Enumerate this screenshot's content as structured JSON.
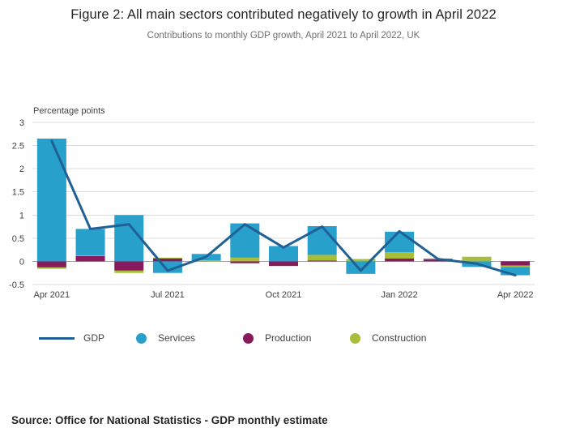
{
  "header": {
    "title": "Figure 2: All main sectors contributed negatively to growth in April 2022",
    "subtitle": "Contributions to monthly GDP growth, April 2021 to April 2022, UK"
  },
  "chart_data": {
    "type": "bar",
    "subtype": "stacked-bars-with-line-overlay",
    "unit_label": "Percentage points",
    "categories": [
      "Apr 2021",
      "May 2021",
      "Jun 2021",
      "Jul 2021",
      "Aug 2021",
      "Sep 2021",
      "Oct 2021",
      "Nov 2021",
      "Dec 2021",
      "Jan 2022",
      "Feb 2022",
      "Mar 2022",
      "Apr 2022"
    ],
    "x_tick_labels": [
      "Apr 2021",
      "Jul 2021",
      "Oct 2021",
      "Jan 2022",
      "Apr 2022"
    ],
    "x_tick_indices": [
      0,
      3,
      6,
      9,
      12
    ],
    "ylim": [
      -0.5,
      3
    ],
    "y_ticks": [
      3,
      2.5,
      2,
      1.5,
      1,
      0.5,
      0,
      -0.5
    ],
    "grid": true,
    "legend_position": "bottom",
    "stack_order": [
      "Production",
      "Construction",
      "Services"
    ],
    "series": [
      {
        "name": "GDP",
        "type": "line",
        "color": "#206095",
        "values": [
          2.6,
          0.7,
          0.8,
          -0.2,
          0.1,
          0.8,
          0.3,
          0.75,
          -0.2,
          0.65,
          0.05,
          -0.05,
          -0.3
        ]
      },
      {
        "name": "Services",
        "type": "bar",
        "color": "#27A0CC",
        "values": [
          2.65,
          0.57,
          1.0,
          -0.25,
          0.14,
          0.74,
          0.33,
          0.62,
          -0.27,
          0.44,
          0.02,
          -0.12,
          -0.18
        ]
      },
      {
        "name": "Production",
        "type": "bar",
        "color": "#871A5B",
        "values": [
          -0.13,
          0.12,
          -0.2,
          0.06,
          0,
          -0.04,
          -0.1,
          0.02,
          0,
          0.06,
          0.04,
          0,
          -0.09
        ]
      },
      {
        "name": "Construction",
        "type": "bar",
        "color": "#A8BD3A",
        "values": [
          -0.03,
          0.01,
          -0.05,
          0.02,
          0.02,
          0.08,
          0,
          0.12,
          0.05,
          0.14,
          0,
          0.1,
          -0.03
        ]
      }
    ],
    "axis_colors": {
      "gridline": "#dcdcdc",
      "zero_line": "#a0a0a0",
      "tick_text": "#414042"
    }
  },
  "source": {
    "text": "Source: Office for National Statistics - GDP monthly estimate"
  }
}
